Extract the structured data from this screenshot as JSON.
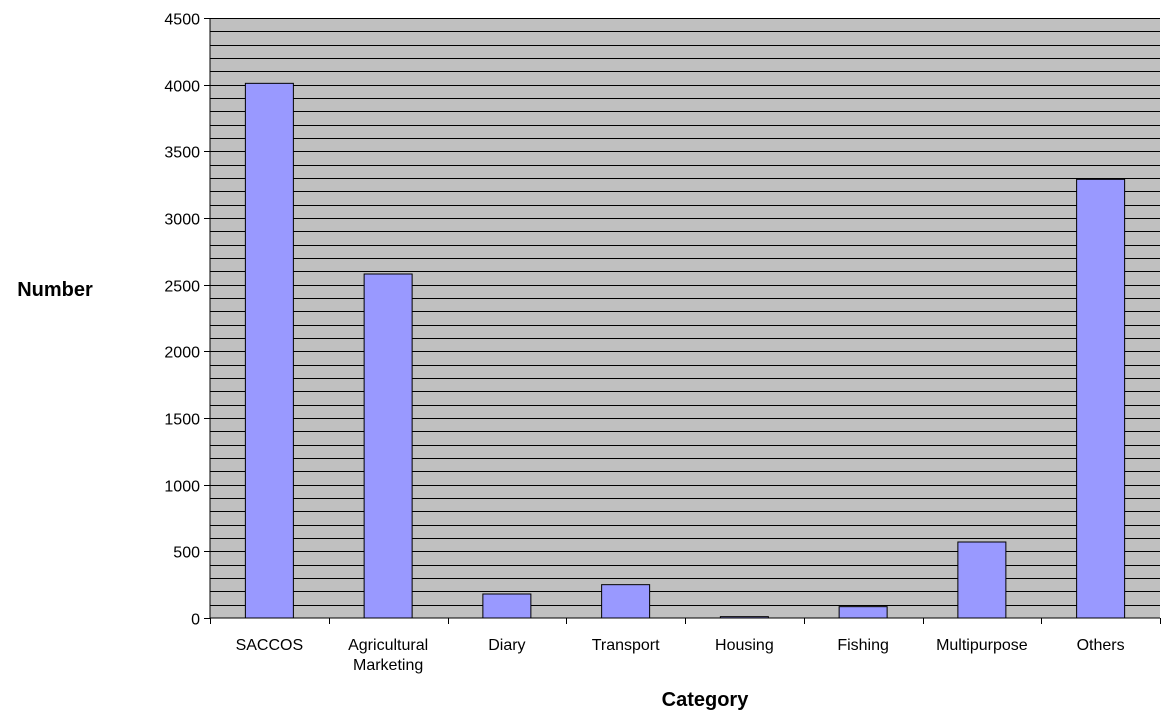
{
  "chart_data": {
    "type": "bar",
    "title": "",
    "xlabel": "Category",
    "ylabel": "Number",
    "categories": [
      [
        "SACCOS"
      ],
      [
        "Agricultural",
        "Marketing"
      ],
      [
        "Diary"
      ],
      [
        "Transport"
      ],
      [
        "Housing"
      ],
      [
        "Fishing"
      ],
      [
        "Multipurpose"
      ],
      [
        "Others"
      ]
    ],
    "values": [
      4010,
      2580,
      180,
      250,
      10,
      85,
      570,
      3290
    ],
    "ylim": [
      0,
      4500
    ],
    "y_ticks": [
      0,
      500,
      1000,
      1500,
      2000,
      2500,
      3000,
      3500,
      4000,
      4500
    ],
    "y_minor_step": 100,
    "grid": true,
    "legend": "none",
    "colors": {
      "bar_fill": "#9999ff",
      "bar_stroke": "#000000",
      "plot_background": "#c0c0c0",
      "grid_line": "#000000"
    }
  }
}
